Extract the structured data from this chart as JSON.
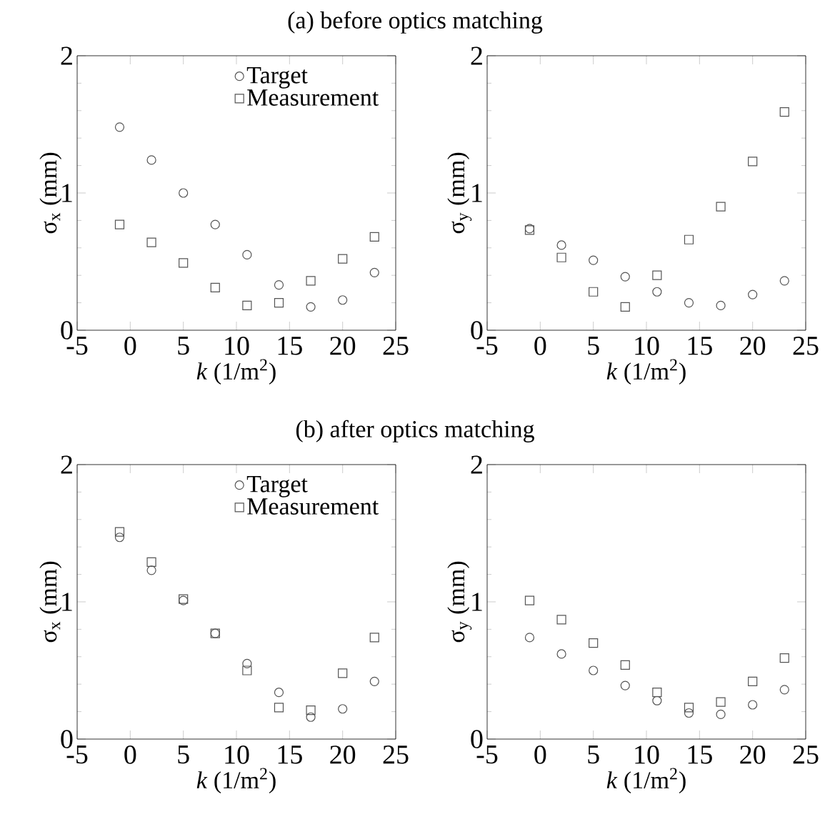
{
  "chart_data": [
    {
      "type": "scatter",
      "title": "(a) before optics matching",
      "xlabel": "*k* (1/m$^{2}$)",
      "ylabel": "σ$_{x}$ (mm)",
      "xlim": [
        -5,
        25
      ],
      "xticks": [
        -5,
        0,
        5,
        10,
        15,
        20,
        25
      ],
      "ylim": [
        0,
        2
      ],
      "yticks": [
        0,
        1,
        2
      ],
      "legend": "top right",
      "x": [
        -1,
        2,
        5,
        8,
        11,
        14,
        17,
        20,
        23
      ],
      "series": [
        {
          "name": "Target",
          "color": "#555555",
          "marker": "circle",
          "values": [
            1.48,
            1.24,
            1.0,
            0.77,
            0.55,
            0.33,
            0.17,
            0.22,
            0.42
          ]
        },
        {
          "name": "Measurement",
          "color": "#555555",
          "marker": "square",
          "values": [
            0.77,
            0.64,
            0.49,
            0.31,
            0.18,
            0.2,
            0.36,
            0.52,
            0.68
          ]
        }
      ]
    },
    {
      "type": "scatter",
      "xlabel": "*k* (1/m$^{2}$)",
      "ylabel": "σ$_{y}$ (mm)",
      "xlim": [
        -5,
        25
      ],
      "xticks": [
        -5,
        0,
        5,
        10,
        15,
        20,
        25
      ],
      "ylim": [
        0,
        2
      ],
      "yticks": [
        0,
        1,
        2
      ],
      "x": [
        -1,
        2,
        5,
        8,
        11,
        14,
        17,
        20,
        23
      ],
      "series": [
        {
          "color": "#555555",
          "marker": "circle",
          "values": [
            0.74,
            0.62,
            0.51,
            0.39,
            0.28,
            0.2,
            0.18,
            0.26,
            0.36
          ]
        },
        {
          "color": "#555555",
          "marker": "square",
          "values": [
            0.73,
            0.53,
            0.28,
            0.17,
            0.4,
            0.66,
            0.9,
            1.23,
            1.59
          ]
        }
      ]
    },
    {
      "type": "scatter",
      "title": "(b) after optics matching",
      "xlabel": "*k* (1/m$^{2}$)",
      "ylabel": "σ$_{x}$ (mm)",
      "xlim": [
        -5,
        25
      ],
      "xticks": [
        -5,
        0,
        5,
        10,
        15,
        20,
        25
      ],
      "ylim": [
        0,
        2
      ],
      "yticks": [
        0,
        1,
        2
      ],
      "legend": "top right",
      "x": [
        -1,
        2,
        5,
        8,
        11,
        14,
        17,
        20,
        23
      ],
      "series": [
        {
          "name": "Target",
          "color": "#555555",
          "marker": "circle",
          "values": [
            1.47,
            1.23,
            1.01,
            0.77,
            0.55,
            0.34,
            0.16,
            0.22,
            0.42
          ]
        },
        {
          "name": "Measurement",
          "color": "#555555",
          "marker": "square",
          "values": [
            1.51,
            1.29,
            1.02,
            0.77,
            0.5,
            0.23,
            0.21,
            0.48,
            0.74
          ]
        }
      ]
    },
    {
      "type": "scatter",
      "xlabel": "*k* (1/m$^{2}$)",
      "ylabel": "σ$_{y}$ (mm)",
      "xlim": [
        -5,
        25
      ],
      "xticks": [
        -5,
        0,
        5,
        10,
        15,
        20,
        25
      ],
      "ylim": [
        0,
        2
      ],
      "yticks": [
        0,
        1,
        2
      ],
      "x": [
        -1,
        2,
        5,
        8,
        11,
        14,
        17,
        20,
        23
      ],
      "series": [
        {
          "color": "#555555",
          "marker": "circle",
          "values": [
            0.74,
            0.62,
            0.5,
            0.39,
            0.28,
            0.19,
            0.18,
            0.25,
            0.36
          ]
        },
        {
          "color": "#555555",
          "marker": "square",
          "values": [
            1.01,
            0.87,
            0.7,
            0.54,
            0.34,
            0.23,
            0.27,
            0.42,
            0.59
          ]
        }
      ]
    }
  ]
}
